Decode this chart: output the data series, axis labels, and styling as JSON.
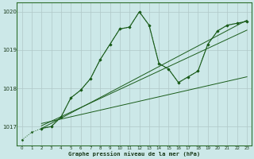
{
  "background_color": "#cce8e8",
  "grid_color": "#b0c8c8",
  "line_color": "#1a5c1a",
  "title": "Graphe pression niveau de la mer (hPa)",
  "xlim": [
    -0.5,
    23.5
  ],
  "ylim": [
    1016.5,
    1020.25
  ],
  "yticks": [
    1017,
    1018,
    1019,
    1020
  ],
  "xticks": [
    0,
    1,
    2,
    3,
    4,
    5,
    6,
    7,
    8,
    9,
    10,
    11,
    12,
    13,
    14,
    15,
    16,
    17,
    18,
    19,
    20,
    21,
    22,
    23
  ],
  "line1_x": [
    0,
    1,
    2,
    3,
    4,
    5,
    6,
    7,
    8,
    9,
    10,
    11,
    12,
    13,
    14,
    15,
    16,
    17,
    18,
    19,
    20,
    21,
    22,
    23
  ],
  "line1_y": [
    1016.65,
    1016.85,
    1016.95,
    1017.0,
    1017.25,
    1017.75,
    1017.95,
    1018.25,
    1018.75,
    1019.15,
    1019.55,
    1019.6,
    1020.0,
    1019.65,
    1018.65,
    1018.5,
    1018.15,
    1018.3,
    1018.45,
    1019.15,
    1019.5,
    1019.65,
    1019.7,
    1019.75
  ],
  "line2_x": [
    2,
    3,
    4,
    5,
    6,
    7,
    8,
    9,
    10,
    11,
    12,
    13,
    14,
    15,
    16,
    17,
    18,
    19,
    20,
    21,
    22,
    23
  ],
  "line2_y": [
    1016.95,
    1017.0,
    1017.25,
    1017.75,
    1017.95,
    1018.25,
    1018.75,
    1019.15,
    1019.55,
    1019.6,
    1020.0,
    1019.65,
    1018.65,
    1018.5,
    1018.15,
    1018.3,
    1018.45,
    1019.15,
    1019.5,
    1019.65,
    1019.7,
    1019.75
  ],
  "line3_x": [
    2,
    23
  ],
  "line3_y": [
    1016.95,
    1019.78
  ],
  "line4_x": [
    2,
    23
  ],
  "line4_y": [
    1017.02,
    1019.52
  ],
  "line5_x": [
    2,
    23
  ],
  "line5_y": [
    1017.08,
    1018.3
  ]
}
